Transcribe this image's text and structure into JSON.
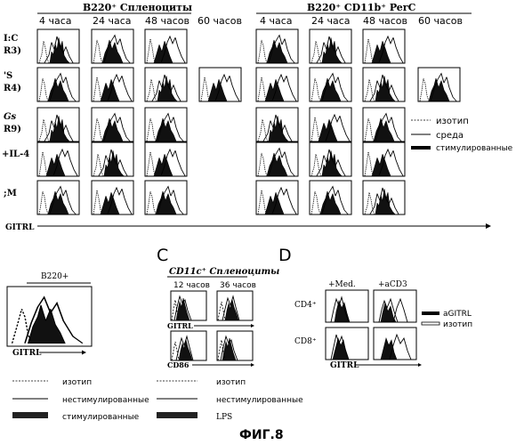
{
  "panel_a": {
    "header_left": "B220⁺ Спленоциты",
    "header_right": "B220⁺ CD11b⁺ PerC",
    "times": [
      "4 часа",
      "24 часа",
      "48 часов",
      "60 часов"
    ],
    "row_labels": [
      {
        "line1": "I:C",
        "line2": "R3)"
      },
      {
        "line1": "'S",
        "line2": "R4)"
      },
      {
        "line1": "Gs",
        "line2": "R9)"
      },
      {
        "line1": "+IL-4",
        "line2": ""
      },
      {
        "line1": ";M",
        "line2": ""
      }
    ],
    "x_label": "GITRL",
    "legend": [
      "изотип",
      "среда",
      "стимулированные"
    ]
  },
  "panel_b": {
    "header": "B220+",
    "x_label": "GITRL",
    "legend": [
      "изотип",
      "нестимулированные",
      "стимулированные"
    ]
  },
  "panel_c": {
    "letter": "C",
    "header": "CD11c⁺ Спленоциты",
    "times": [
      "12 часов",
      "36 часов"
    ],
    "row_labels": [
      "GITRL",
      "CD86"
    ],
    "legend": [
      "изотип",
      "нестимулированные",
      "LPS"
    ]
  },
  "panel_d": {
    "letter": "D",
    "col_labels": [
      "+Med.",
      "+aCD3"
    ],
    "row_labels": [
      "CD4⁺",
      "CD8⁺"
    ],
    "x_label": "GITRL",
    "legend": [
      "aGITRL",
      "изотип"
    ]
  },
  "caption": "ФИГ.8"
}
